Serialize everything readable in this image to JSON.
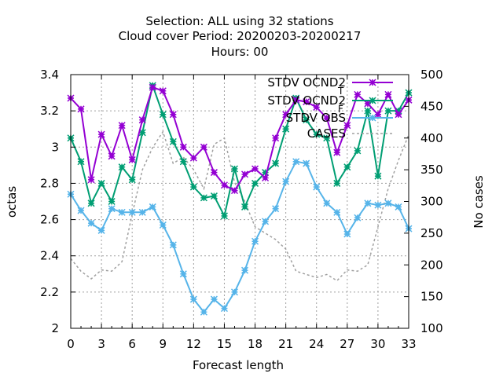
{
  "chart_data": {
    "type": "line",
    "title_lines": [
      "Selection: ALL using    32 stations",
      "Cloud cover   Period: 20200203-20200217",
      "Hours:  00"
    ],
    "xlabel": "Forecast length",
    "ylabel": "octas",
    "y2label": "No cases",
    "xlim": [
      0,
      33
    ],
    "ylim": [
      2,
      3.4
    ],
    "y2lim": [
      100,
      500
    ],
    "xticks": [
      0,
      3,
      6,
      9,
      12,
      15,
      18,
      21,
      24,
      27,
      30,
      33
    ],
    "yticks": [
      2,
      2.2,
      2.4,
      2.6,
      2.8,
      3,
      3.2,
      3.4
    ],
    "yticklabels": [
      "2",
      "2.2",
      "2.4",
      "2.6",
      "2.8",
      "3",
      "3.2",
      "3.4"
    ],
    "y2ticks": [
      100,
      150,
      200,
      250,
      300,
      350,
      400,
      450,
      500
    ],
    "grid": true,
    "legend_position": "top-right",
    "x": [
      0,
      1,
      2,
      3,
      4,
      5,
      6,
      7,
      8,
      9,
      10,
      11,
      12,
      13,
      14,
      15,
      16,
      17,
      18,
      19,
      20,
      21,
      22,
      23,
      24,
      25,
      26,
      27,
      28,
      29,
      30,
      31,
      32,
      33
    ],
    "series": [
      {
        "name": "STDV OCND2",
        "subscript": "T",
        "color": "#9400d3",
        "axis": "y1",
        "marker": true,
        "dashed": false,
        "values": [
          3.27,
          3.21,
          2.82,
          3.07,
          2.95,
          3.12,
          2.93,
          3.15,
          3.33,
          3.31,
          3.18,
          3.0,
          2.94,
          3.0,
          2.86,
          2.79,
          2.76,
          2.85,
          2.88,
          2.83,
          3.05,
          3.18,
          3.26,
          3.25,
          3.22,
          3.16,
          2.97,
          3.12,
          3.29,
          3.24,
          3.18,
          3.29,
          3.18,
          3.26
        ]
      },
      {
        "name": "STDV OCND2",
        "subscript": "F",
        "color": "#009e73",
        "axis": "y1",
        "marker": true,
        "dashed": false,
        "values": [
          3.05,
          2.92,
          2.69,
          2.8,
          2.7,
          2.89,
          2.82,
          3.08,
          3.34,
          3.18,
          3.03,
          2.92,
          2.78,
          2.72,
          2.73,
          2.62,
          2.88,
          2.67,
          2.8,
          2.86,
          2.91,
          3.1,
          3.27,
          3.15,
          3.07,
          3.05,
          2.8,
          2.89,
          2.98,
          3.2,
          2.84,
          3.2,
          3.2,
          3.3
        ]
      },
      {
        "name": "STDV OBS",
        "subscript": "",
        "color": "#56b4e9",
        "axis": "y1",
        "marker": true,
        "dashed": false,
        "values": [
          2.74,
          2.65,
          2.58,
          2.54,
          2.66,
          2.64,
          2.64,
          2.64,
          2.67,
          2.57,
          2.46,
          2.3,
          2.16,
          2.09,
          2.16,
          2.11,
          2.2,
          2.32,
          2.48,
          2.59,
          2.66,
          2.81,
          2.92,
          2.91,
          2.78,
          2.69,
          2.64,
          2.52,
          2.61,
          2.69,
          2.68,
          2.69,
          2.67,
          2.55
        ]
      },
      {
        "name": "CASES",
        "subscript": "",
        "color": "#a0a0a0",
        "axis": "y2",
        "marker": false,
        "dashed": true,
        "values": [
          210,
          190,
          178,
          192,
          190,
          205,
          280,
          350,
          385,
          410,
          360,
          370,
          350,
          320,
          390,
          400,
          330,
          300,
          260,
          250,
          240,
          225,
          190,
          185,
          180,
          185,
          175,
          192,
          190,
          200,
          260,
          320,
          365,
          405
        ]
      }
    ]
  }
}
